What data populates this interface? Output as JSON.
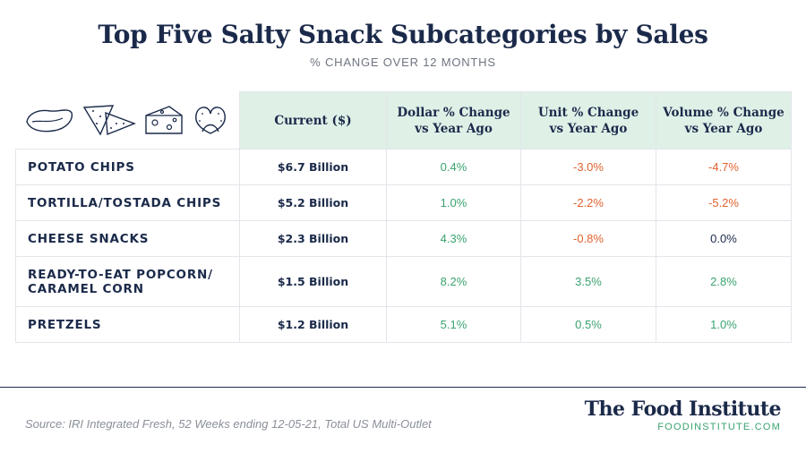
{
  "title": "Top Five Salty Snack Subcategories by Sales",
  "subtitle": "% CHANGE OVER 12 MONTHS",
  "icons": [
    "potato-chip-icon",
    "tortilla-chip-icon",
    "cheese-icon",
    "pretzel-icon"
  ],
  "colors": {
    "header_bg": "#dff0e7",
    "positive": "#3aa36f",
    "negative": "#e2622f",
    "navy": "#1b2a4a"
  },
  "chart_data": {
    "type": "table",
    "title": "Top Five Salty Snack Subcategories by Sales",
    "subtitle": "% CHANGE OVER 12 MONTHS",
    "columns": [
      "Current ($)",
      "Dollar % Change vs Year Ago",
      "Unit  % Change vs Year Ago",
      "Volume  % Change vs Year Ago"
    ],
    "column_lines": [
      [
        "Current ($)"
      ],
      [
        "Dollar % Change",
        "vs Year Ago"
      ],
      [
        "Unit  % Change",
        "vs Year Ago"
      ],
      [
        "Volume  % Change",
        "vs Year Ago"
      ]
    ],
    "rows": [
      {
        "category": "POTATO CHIPS",
        "category_lines": [
          "POTATO CHIPS"
        ],
        "current": "$6.7 Billion",
        "dollar": "0.4%",
        "unit": "-3.0%",
        "volume": "-4.7%",
        "dollar_value": 0.4,
        "unit_value": -3.0,
        "volume_value": -4.7
      },
      {
        "category": "TORTILLA/TOSTADA CHIPS",
        "category_lines": [
          "TORTILLA/TOSTADA CHIPS"
        ],
        "current": "$5.2 Billion",
        "dollar": "1.0%",
        "unit": "-2.2%",
        "volume": "-5.2%",
        "dollar_value": 1.0,
        "unit_value": -2.2,
        "volume_value": -5.2
      },
      {
        "category": "CHEESE SNACKS",
        "category_lines": [
          "CHEESE SNACKS"
        ],
        "current": "$2.3 Billion",
        "dollar": "4.3%",
        "unit": "-0.8%",
        "volume": "0.0%",
        "dollar_value": 4.3,
        "unit_value": -0.8,
        "volume_value": 0.0
      },
      {
        "category": "READY-TO-EAT POPCORN/ CARAMEL CORN",
        "category_lines": [
          "READY-TO-EAT POPCORN/",
          "CARAMEL CORN"
        ],
        "current": "$1.5 Billion",
        "dollar": "8.2%",
        "unit": "3.5%",
        "volume": "2.8%",
        "dollar_value": 8.2,
        "unit_value": 3.5,
        "volume_value": 2.8
      },
      {
        "category": "PRETZELS",
        "category_lines": [
          "PRETZELS"
        ],
        "current": "$1.2 Billion",
        "dollar": "5.1%",
        "unit": "0.5%",
        "volume": "1.0%",
        "dollar_value": 5.1,
        "unit_value": 0.5,
        "volume_value": 1.0
      }
    ]
  },
  "footer": {
    "source": "Source: IRI Integrated Fresh, 52 Weeks ending 12-05-21, Total US Multi-Outlet",
    "brand_name": "The Food Institute",
    "brand_url": "FOODINSTITUTE.COM"
  }
}
